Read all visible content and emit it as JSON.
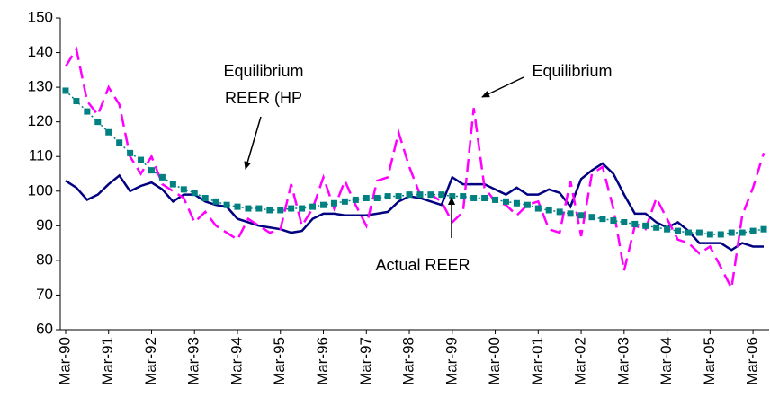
{
  "chart_data": {
    "type": "line",
    "categories": [
      "Mar-90",
      null,
      null,
      null,
      "Mar-91",
      null,
      null,
      null,
      "Mar-92",
      null,
      null,
      null,
      "Mar-93",
      null,
      null,
      null,
      "Mar-94",
      null,
      null,
      null,
      "Mar-95",
      null,
      null,
      null,
      "Mar-96",
      null,
      null,
      null,
      "Mar-97",
      null,
      null,
      null,
      "Mar-98",
      null,
      null,
      null,
      "Mar-99",
      null,
      null,
      null,
      "Mar-00",
      null,
      null,
      null,
      "Mar-01",
      null,
      null,
      null,
      "Mar-02",
      null,
      null,
      null,
      "Mar-03",
      null,
      null,
      null,
      "Mar-04",
      null,
      null,
      null,
      "Mar-05",
      null,
      null,
      null,
      "Mar-06",
      null
    ],
    "series": [
      {
        "name": "Actual REER",
        "color": "#000080",
        "style": "solid",
        "values": [
          103,
          101,
          97.5,
          99,
          102,
          104.5,
          100,
          101.5,
          102.5,
          100.5,
          97,
          99,
          99,
          97,
          96,
          95.5,
          92,
          91,
          90,
          89.5,
          89,
          88,
          88.5,
          92,
          93.5,
          93.5,
          93,
          93,
          93,
          93.5,
          94,
          97,
          98.5,
          98,
          97,
          96,
          104,
          102,
          102,
          102,
          100.5,
          99,
          101,
          99,
          99,
          100.5,
          99.5,
          95.5,
          103.5,
          106,
          108,
          105,
          99,
          93.5,
          93.5,
          91,
          89.5,
          91,
          88.5,
          85,
          85,
          85,
          83,
          85,
          84,
          84
        ]
      },
      {
        "name": "Equilibrium",
        "color": "#ff00ff",
        "style": "dashed",
        "values": [
          136,
          141,
          126,
          122,
          130,
          125,
          110,
          105,
          110,
          102,
          100,
          98,
          91,
          94,
          90,
          88,
          86,
          92,
          90,
          88,
          89,
          102,
          90,
          95,
          104,
          95,
          103,
          96,
          90,
          103,
          104,
          117,
          107,
          99,
          99,
          97,
          91,
          94,
          124,
          101,
          97,
          96,
          93,
          96,
          97,
          89,
          88,
          103,
          87,
          105,
          107,
          95,
          77,
          90,
          89,
          98,
          92,
          86,
          85,
          82,
          84,
          78,
          72,
          93,
          101,
          111
        ]
      },
      {
        "name": "Equilibrium REER (HP",
        "color": "#008080",
        "style": "markers",
        "values": [
          129,
          126,
          123,
          120,
          117,
          114,
          111,
          109,
          106,
          104,
          102,
          100.5,
          99.5,
          98,
          97,
          96,
          95.5,
          95,
          95,
          94.5,
          94.5,
          95,
          95,
          95.5,
          96,
          96.5,
          97,
          97.5,
          98,
          98,
          98.5,
          98.5,
          99,
          99,
          99,
          99,
          98.5,
          98.5,
          98,
          98,
          97.5,
          97,
          96.5,
          96,
          95,
          94.5,
          94,
          93.5,
          93,
          92.5,
          92,
          91.5,
          91,
          90.5,
          90,
          89.5,
          89,
          88.5,
          88,
          88,
          87.5,
          87.5,
          88,
          88,
          88.5,
          89
        ]
      }
    ],
    "annotations": [
      "Equilibrium",
      "REER (HP",
      "Equilibrium",
      "Actual REER"
    ],
    "ylim": [
      60,
      150
    ],
    "yticks": [
      60,
      70,
      80,
      90,
      100,
      110,
      120,
      130,
      140,
      150
    ],
    "grid": false
  }
}
